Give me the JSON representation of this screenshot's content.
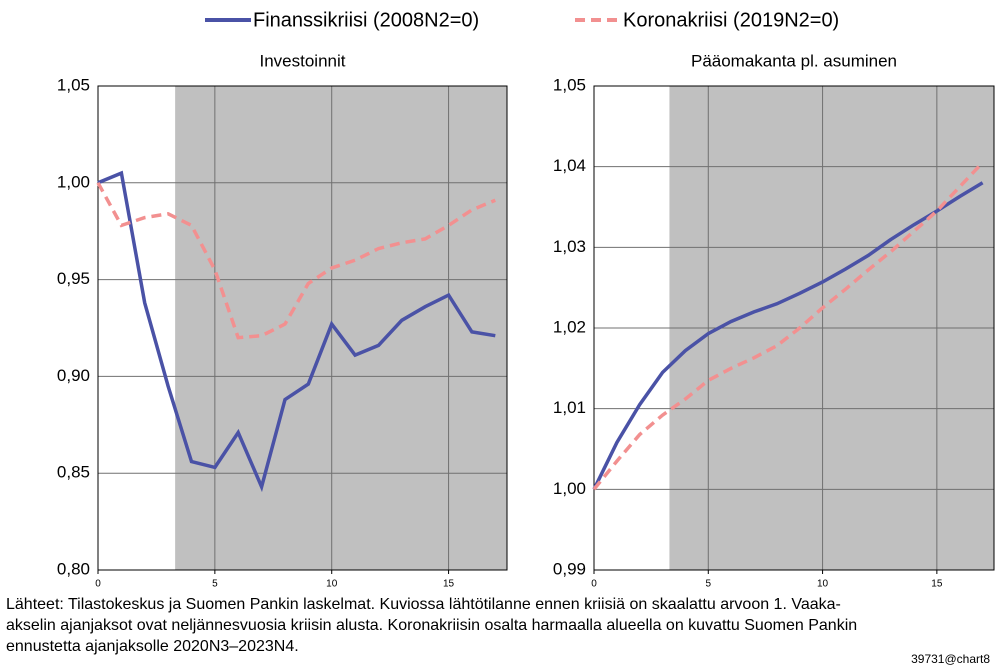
{
  "chart_data": [
    {
      "type": "line",
      "title": "Investoinnit",
      "x": [
        0,
        1,
        2,
        3,
        4,
        5,
        6,
        7,
        8,
        9,
        10,
        11,
        12,
        13,
        14,
        15,
        16,
        17
      ],
      "series": [
        {
          "name": "Finanssikriisi (2008N2=0)",
          "color": "#4a52a6",
          "values": [
            1.0,
            1.005,
            0.938,
            0.895,
            0.856,
            0.853,
            0.871,
            0.843,
            0.888,
            0.896,
            0.927,
            0.911,
            0.916,
            0.929,
            0.936,
            0.942,
            0.923,
            0.921
          ]
        },
        {
          "name": "Koronakriisi (2019N2=0)",
          "color": "#f29090",
          "values": [
            1.0,
            0.978,
            0.982,
            0.984,
            0.978,
            0.955,
            0.92,
            0.921,
            0.927,
            0.948,
            0.956,
            0.96,
            0.966,
            0.969,
            0.971,
            0.978,
            0.986,
            0.991
          ]
        }
      ],
      "xlim": [
        0,
        17.5
      ],
      "xticks": [
        0,
        5,
        10,
        15
      ],
      "ylim": [
        0.8,
        1.05
      ],
      "yticks": [
        {
          "value": 0.8,
          "label": "0,80"
        },
        {
          "value": 0.85,
          "label": "0,85"
        },
        {
          "value": 0.9,
          "label": "0,90"
        },
        {
          "value": 0.95,
          "label": "0,95"
        },
        {
          "value": 1.0,
          "label": "1,00"
        },
        {
          "value": 1.05,
          "label": "1,05"
        }
      ],
      "shade_start": 3.3,
      "grid": true
    },
    {
      "type": "line",
      "title": "Pääomakanta pl. asuminen",
      "x": [
        0,
        1,
        2,
        3,
        4,
        5,
        6,
        7,
        8,
        9,
        10,
        11,
        12,
        13,
        14,
        15,
        16,
        17
      ],
      "series": [
        {
          "name": "Finanssikriisi (2008N2=0)",
          "color": "#4a52a6",
          "values": [
            1.0,
            1.0058,
            1.0105,
            1.0145,
            1.0172,
            1.0193,
            1.0208,
            1.022,
            1.023,
            1.0243,
            1.0257,
            1.0273,
            1.029,
            1.031,
            1.0328,
            1.0345,
            1.0363,
            1.038
          ]
        },
        {
          "name": "Koronakriisi (2019N2=0)",
          "color": "#f29090",
          "values": [
            1.0,
            1.0035,
            1.0068,
            1.0092,
            1.0112,
            1.0135,
            1.015,
            1.0163,
            1.0178,
            1.02,
            1.0225,
            1.0248,
            1.0272,
            1.0295,
            1.032,
            1.0345,
            1.0375,
            1.0405
          ]
        }
      ],
      "xlim": [
        0,
        17.5
      ],
      "xticks": [
        0,
        5,
        10,
        15
      ],
      "ylim": [
        0.99,
        1.05
      ],
      "yticks": [
        {
          "value": 0.99,
          "label": "0,99"
        },
        {
          "value": 1.0,
          "label": "1,00"
        },
        {
          "value": 1.01,
          "label": "1,01"
        },
        {
          "value": 1.02,
          "label": "1,02"
        },
        {
          "value": 1.03,
          "label": "1,03"
        },
        {
          "value": 1.04,
          "label": "1,04"
        },
        {
          "value": 1.05,
          "label": "1,05"
        }
      ],
      "shade_start": 3.3,
      "grid": true
    }
  ],
  "footnote": [
    "Lähteet: Tilastokeskus ja Suomen Pankin laskelmat. Kuviossa lähtötilanne ennen kriisiä on skaalattu arvoon 1. Vaaka-",
    "akselin ajanjaksot ovat neljännesvuosia  kriisin alusta. Koronakriisin osalta harmaalla alueella on kuvattu Suomen Pankin",
    "ennustetta ajanjaksolle 2020N3–2023N4."
  ],
  "chart_id": "39731@chart8"
}
